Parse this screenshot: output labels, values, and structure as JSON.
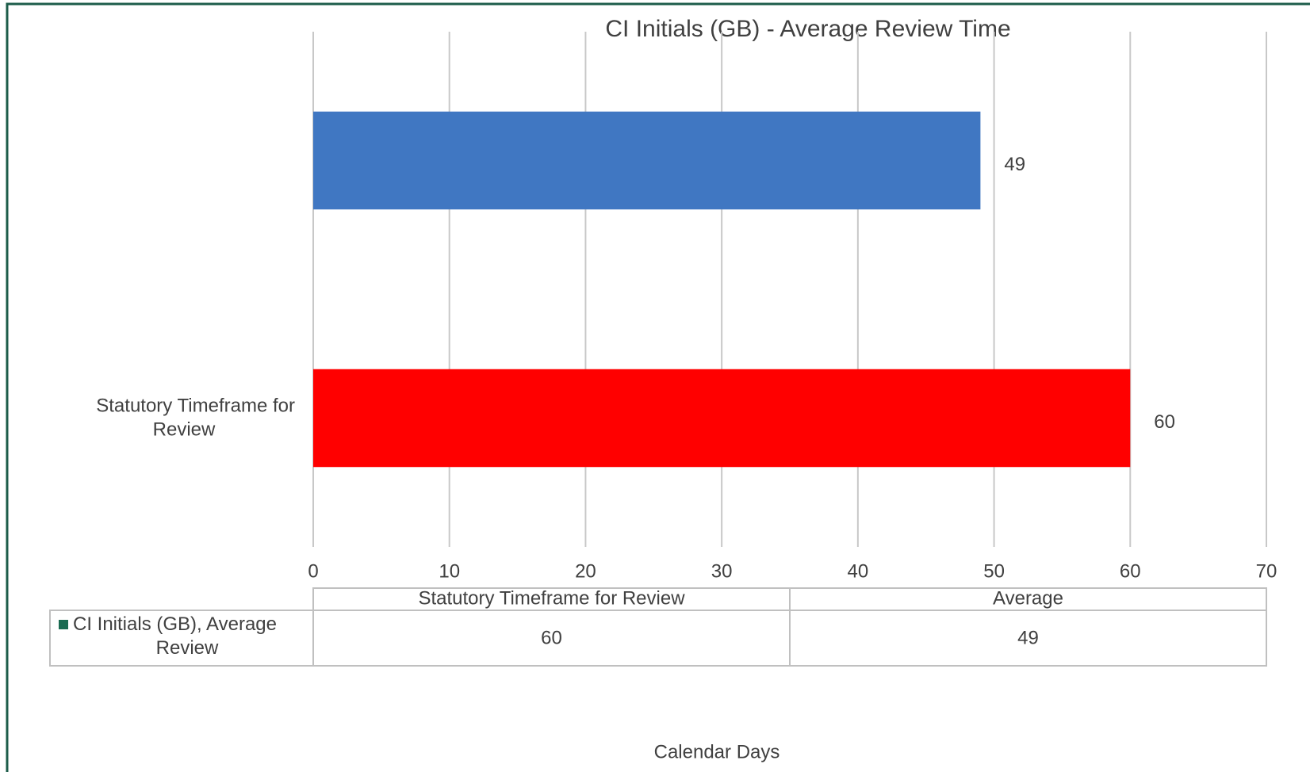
{
  "chart_data": {
    "type": "bar",
    "orientation": "horizontal",
    "title": "CI Initials (GB) - Average Review Time",
    "categories": [
      "Average",
      "Statutory Timeframe for Review"
    ],
    "values": [
      49,
      60
    ],
    "colors": [
      "#4077c2",
      "#ff0000"
    ],
    "xlim": [
      0,
      70
    ],
    "xticks": [
      0,
      10,
      20,
      30,
      40,
      50,
      60,
      70
    ],
    "grid": true,
    "x_label": "Calendar Days",
    "data_table": {
      "series_name": "CI Initials (GB), Average Review",
      "color": "#1a6b52"
    }
  }
}
